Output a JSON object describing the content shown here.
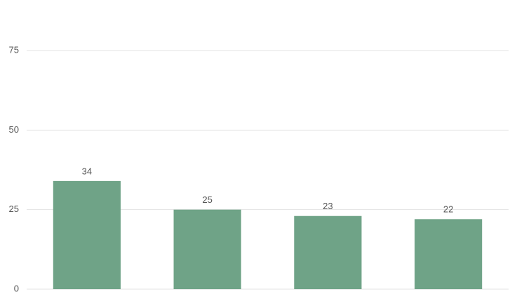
{
  "chart_data": {
    "type": "bar",
    "categories": [
      null,
      null,
      null,
      null
    ],
    "values": [
      34,
      25,
      23,
      22
    ],
    "color": "#6fa387",
    "ylim": [
      0,
      75
    ],
    "yticks": [
      0,
      25,
      50,
      75
    ],
    "grid": true
  }
}
